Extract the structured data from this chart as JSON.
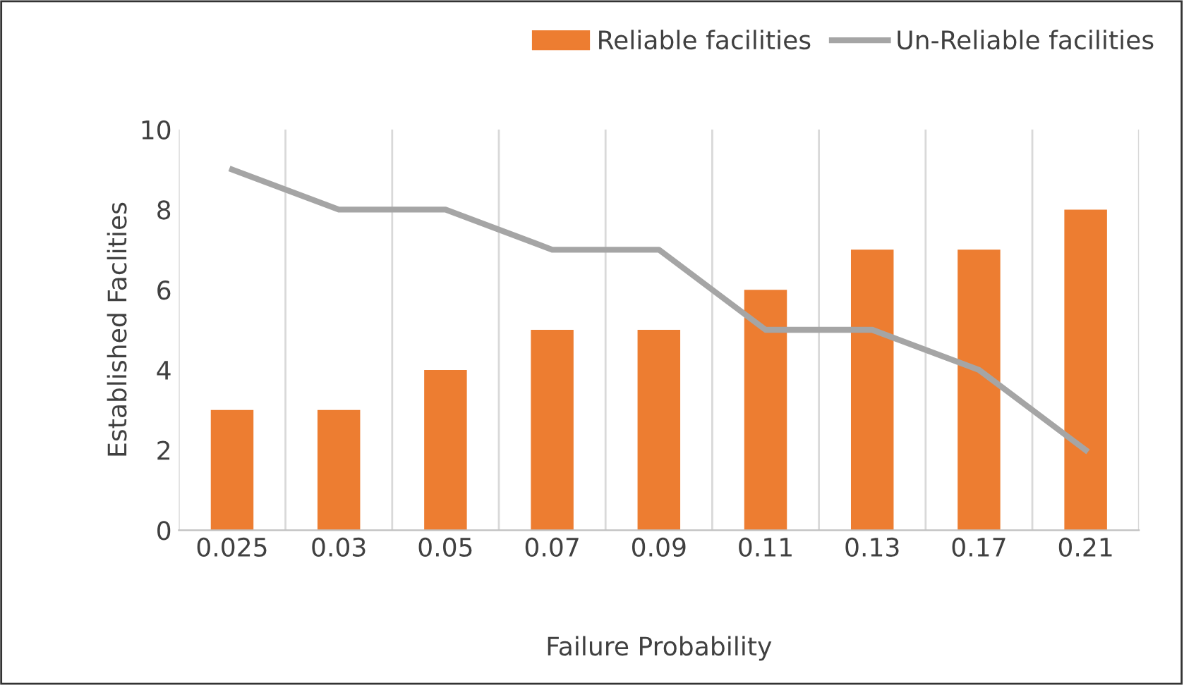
{
  "chart_data": {
    "type": "bar",
    "xlabel": "Failure Probability",
    "ylabel": "Established Faclities",
    "categories": [
      "0.025",
      "0.03",
      "0.05",
      "0.07",
      "0.09",
      "0.11",
      "0.13",
      "0.17",
      "0.21"
    ],
    "series": [
      {
        "name": "Reliable facilities",
        "color": "#ed7d31",
        "values": [
          3,
          3,
          4,
          5,
          5,
          6,
          7,
          7,
          8
        ]
      },
      {
        "name": "Un-Reliable facilities",
        "type": "line",
        "color": "#a5a5a5",
        "values": [
          9,
          8,
          8,
          7,
          7,
          5,
          5,
          4,
          2
        ]
      }
    ],
    "ylim": [
      0,
      10
    ],
    "yticks": [
      0,
      2,
      4,
      6,
      8,
      10
    ],
    "grid": "x",
    "legend": "top right",
    "marker": "none",
    "line_style": "solid"
  }
}
